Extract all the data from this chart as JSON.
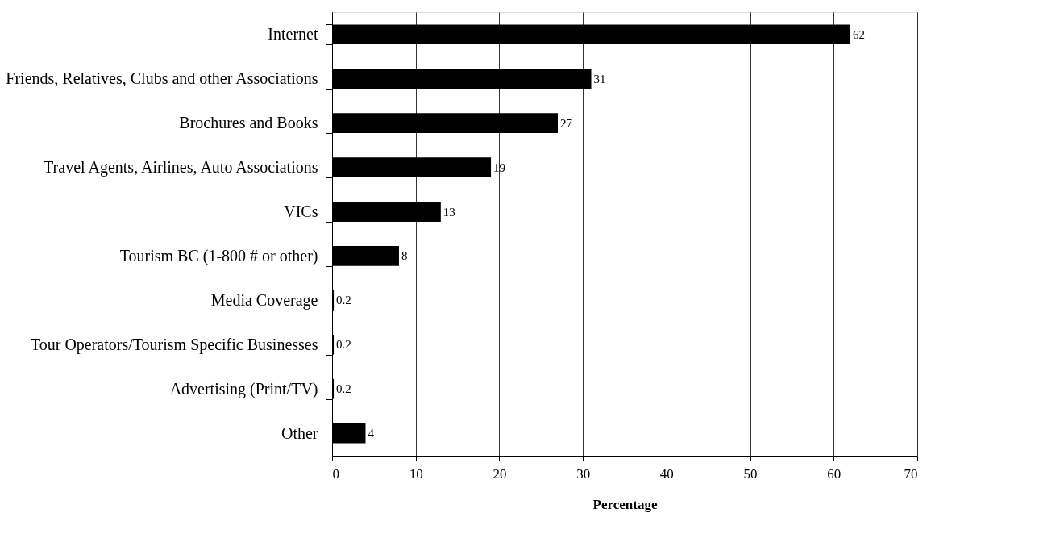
{
  "chart_data": {
    "type": "bar",
    "orientation": "horizontal",
    "xlabel": "Percentage",
    "categories": [
      "Internet",
      "Friends, Relatives, Clubs and other Associations",
      "Brochures and Books",
      "Travel Agents, Airlines, Auto Associations",
      "VICs",
      "Tourism BC (1-800 # or other)",
      "Media Coverage",
      "Tour Operators/Tourism Specific Businesses",
      "Advertising (Print/TV)",
      "Other"
    ],
    "values": [
      62,
      31,
      27,
      19,
      13,
      8,
      0.2,
      0.2,
      0.2,
      4
    ],
    "color": "#000000",
    "data_labels": true,
    "xlim": [
      0,
      70
    ],
    "xticks": [
      0,
      10,
      20,
      30,
      40,
      50,
      60,
      70
    ],
    "grid": "x"
  }
}
